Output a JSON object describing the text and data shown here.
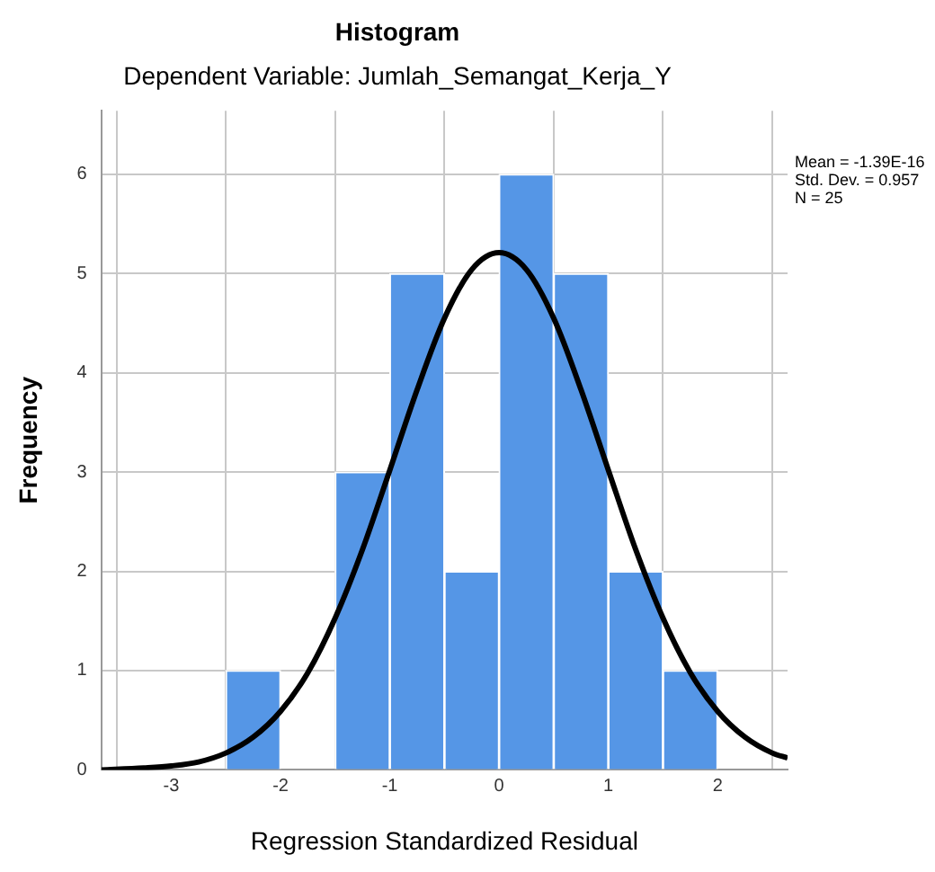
{
  "chart_data": {
    "type": "histogram",
    "title": "Histogram",
    "subtitle": "Dependent Variable: Jumlah_Semangat_Kerja_Y",
    "xlabel": "Regression Standardized Residual",
    "ylabel": "Frequency",
    "bins": [
      -2.5,
      -2,
      -1.5,
      -1,
      -0.5,
      0,
      0.5,
      1,
      1.5,
      2
    ],
    "values": [
      1,
      0,
      3,
      5,
      2,
      6,
      5,
      2,
      1
    ],
    "color": "#5596e6",
    "series": [
      {
        "type": "line",
        "color": "#000000",
        "x": [
          -3.64,
          -3.25,
          -3,
          -2.75,
          -2.5,
          -2.25,
          -2,
          -1.75,
          -1.5,
          -1.25,
          -1,
          -0.75,
          -0.5,
          -0.25,
          0,
          0.25,
          0.5,
          0.75,
          1,
          1.25,
          1.5,
          1.75,
          2,
          2.25,
          2.5,
          2.64
        ],
        "values": [
          0,
          0.02,
          0.04,
          0.08,
          0.17,
          0.33,
          0.59,
          0.98,
          1.53,
          2.22,
          3.02,
          3.83,
          4.55,
          5.04,
          5.21,
          5.04,
          4.55,
          3.83,
          3.02,
          2.22,
          1.53,
          0.98,
          0.59,
          0.33,
          0.17,
          0.12
        ]
      }
    ],
    "xlim": [
      -3.64,
      2.64
    ],
    "xticks": [
      -3,
      -2,
      -1,
      0,
      1,
      2
    ],
    "ylim": [
      0,
      6.64
    ],
    "yticks": [
      0,
      1,
      2,
      3,
      4,
      5,
      6
    ],
    "grid": true,
    "annotations": [
      "Mean = -1.39E-16",
      "Std. Dev. = 0.957",
      "N = 25"
    ]
  }
}
